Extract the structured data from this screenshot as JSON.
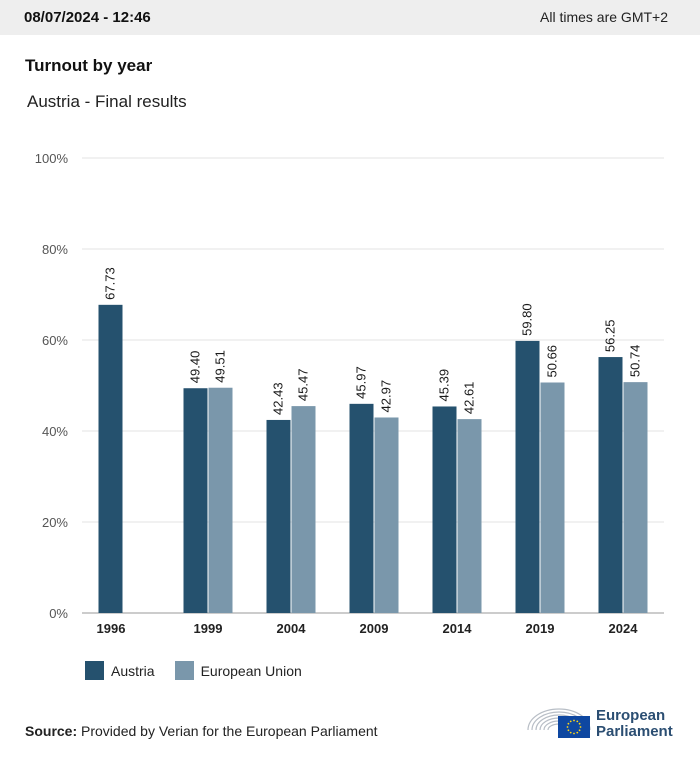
{
  "header": {
    "datetime": "08/07/2024 - 12:46",
    "timezone": "All times are GMT+2"
  },
  "title": "Turnout by year",
  "subtitle": "Austria - Final results",
  "colors": {
    "austria": "#25516e",
    "eu": "#7a97ab",
    "grid": "#e3e3e3",
    "axis": "#9a9a9a",
    "logo_text": "#2b4e72",
    "flag": "#0e47a1"
  },
  "chart_data": {
    "type": "bar",
    "categories": [
      "1996",
      "1999",
      "2004",
      "2009",
      "2014",
      "2019",
      "2024"
    ],
    "series": [
      {
        "name": "Austria",
        "values": [
          67.73,
          49.4,
          42.43,
          45.97,
          45.39,
          59.8,
          56.25
        ]
      },
      {
        "name": "European Union",
        "values": [
          null,
          49.51,
          45.47,
          42.97,
          42.61,
          50.66,
          50.74
        ]
      }
    ],
    "data_labels": [
      [
        "67.73",
        "49.40",
        "42.43",
        "45.97",
        "45.39",
        "59.80",
        "56.25"
      ],
      [
        null,
        "49.51",
        "45.47",
        "42.97",
        "42.61",
        "50.66",
        "50.74"
      ]
    ],
    "yticks": [
      "0%",
      "20%",
      "40%",
      "60%",
      "80%",
      "100%"
    ],
    "ylim": [
      0,
      100
    ],
    "grid": true,
    "legend_position": "bottom-left"
  },
  "legend": {
    "items": [
      {
        "label": "Austria"
      },
      {
        "label": "European Union"
      }
    ]
  },
  "source": {
    "prefix": "Source:",
    "text": "Provided by Verian for the European Parliament"
  },
  "logo": {
    "line1": "European",
    "line2": "Parliament"
  }
}
